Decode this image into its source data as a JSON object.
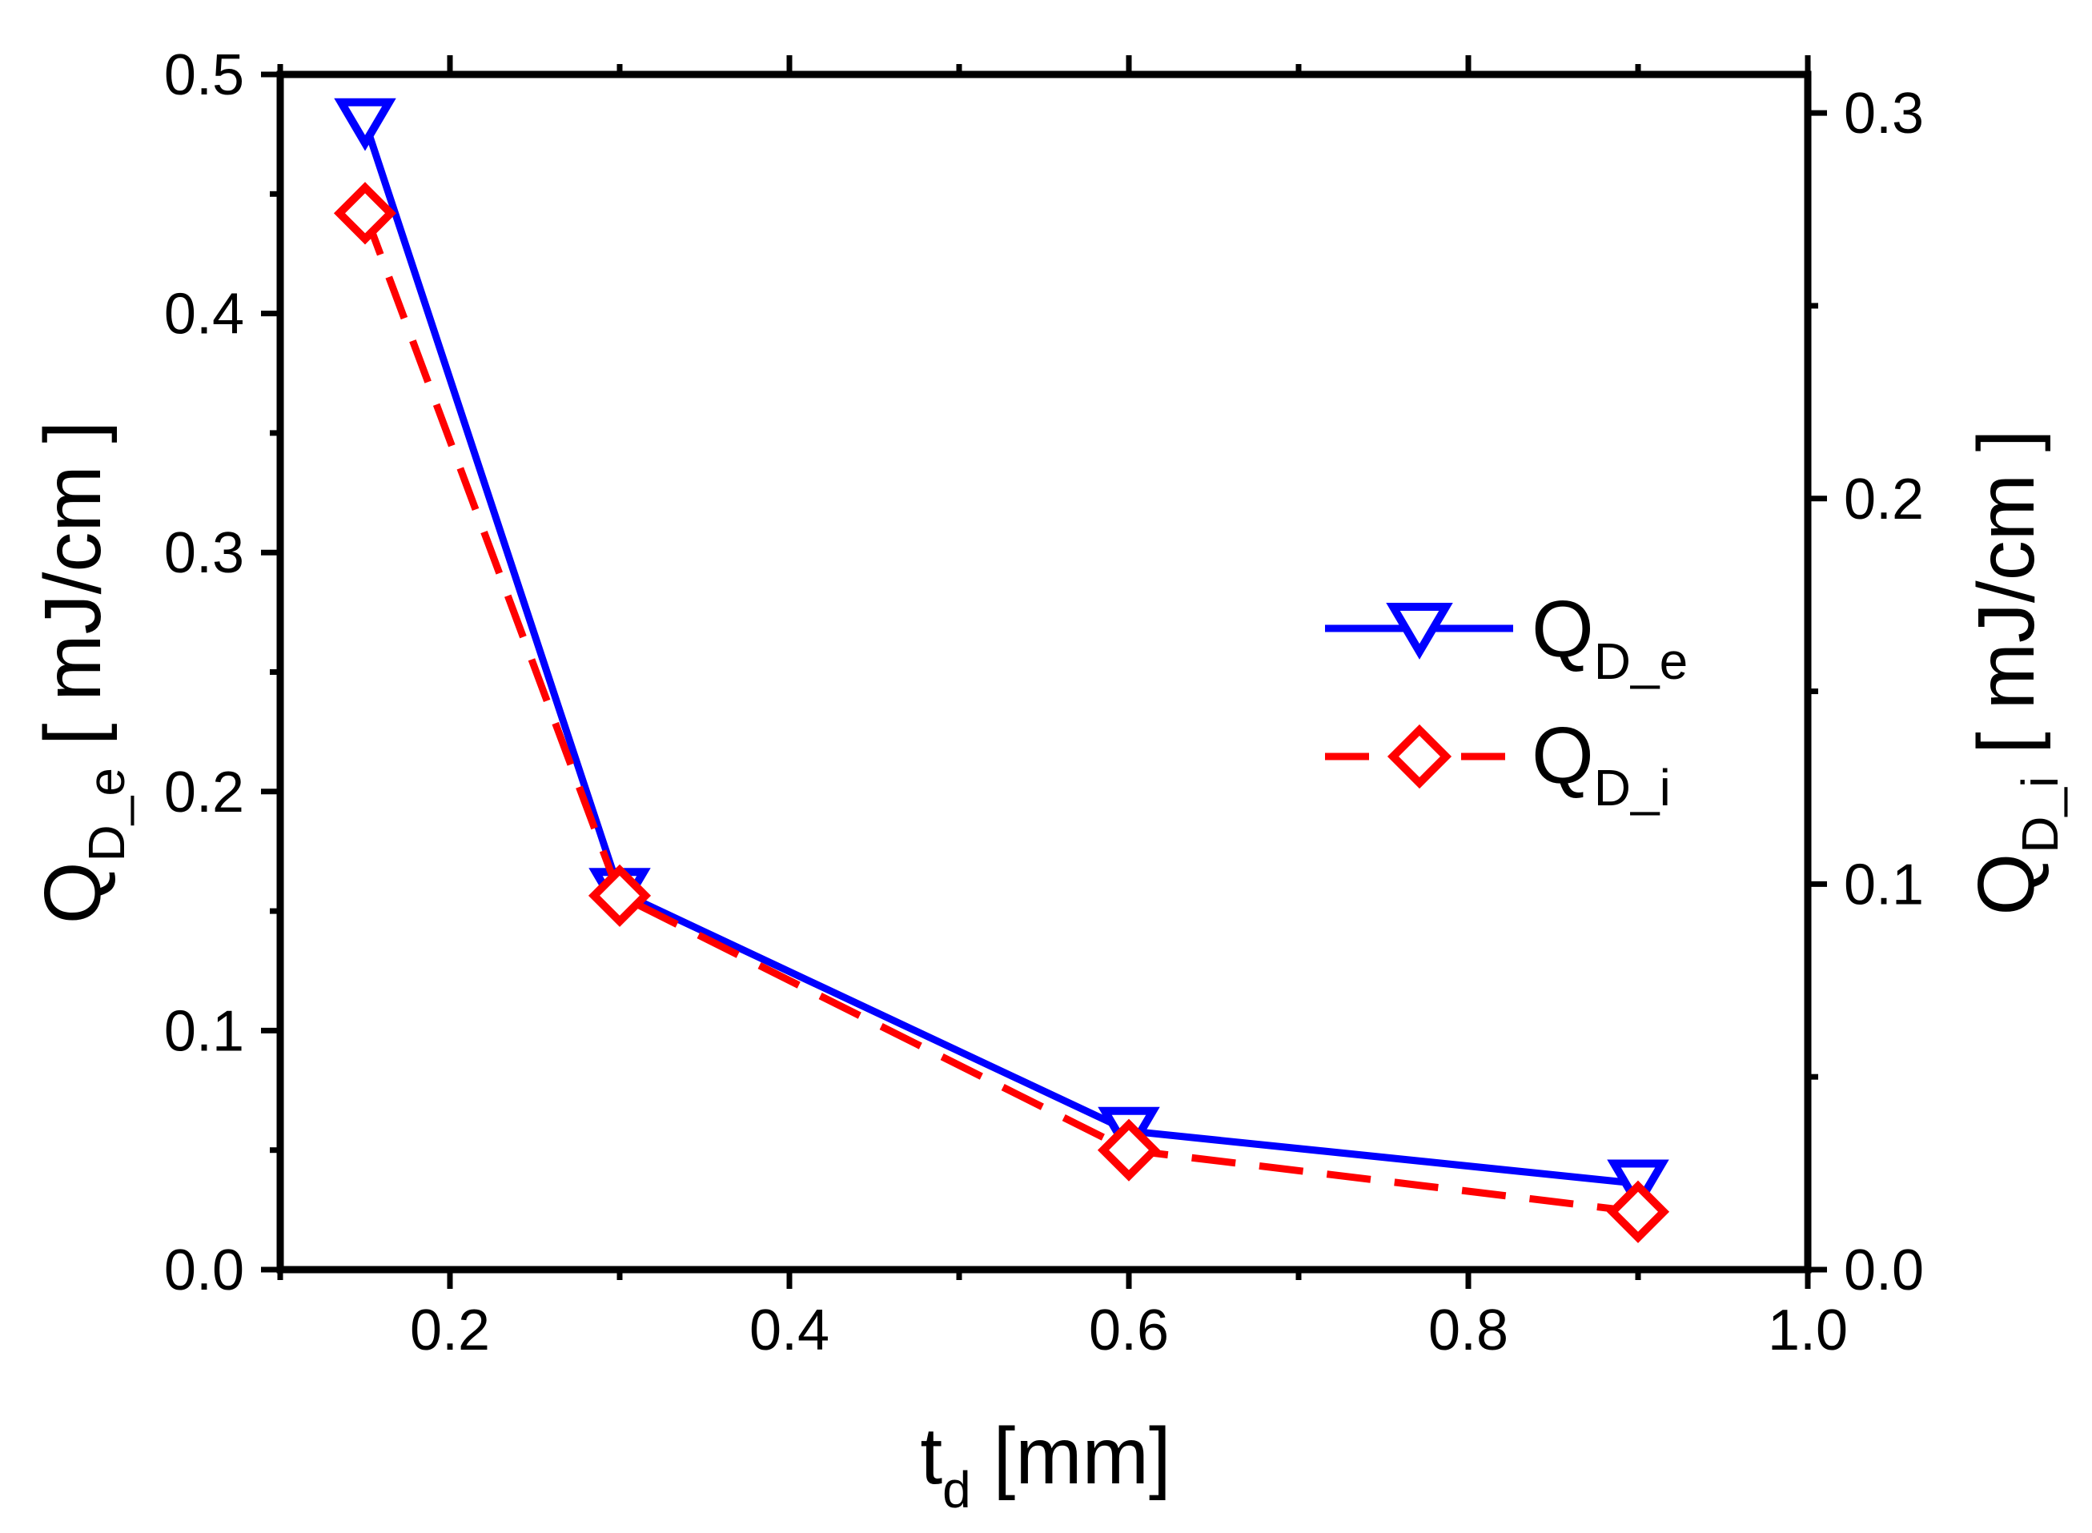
{
  "chart_data": {
    "type": "line",
    "x": [
      0.15,
      0.3,
      0.6,
      0.9
    ],
    "xlim": [
      0.1,
      1.0
    ],
    "x_ticks": [
      "0.2",
      "0.4",
      "0.6",
      "0.8",
      "1.0"
    ],
    "x_tick_values": [
      0.2,
      0.4,
      0.6,
      0.8,
      1.0
    ],
    "xlabel": {
      "main": "t",
      "sub": "d",
      "unit": " [mm]"
    },
    "ylim_left": [
      0.0,
      0.5
    ],
    "y_ticks_left": [
      "0.0",
      "0.1",
      "0.2",
      "0.3",
      "0.4",
      "0.5"
    ],
    "y_tick_values_left": [
      0.0,
      0.1,
      0.2,
      0.3,
      0.4,
      0.5
    ],
    "ylabel_left": {
      "main": "Q",
      "sub": "D_e",
      "unit": " [ mJ/cm ]"
    },
    "ylim_right": [
      0.0,
      0.31
    ],
    "y_ticks_right": [
      "0.0",
      "0.1",
      "0.2",
      "0.3"
    ],
    "y_tick_values_right": [
      0.0,
      0.1,
      0.2,
      0.3
    ],
    "ylabel_right": {
      "main": "Q",
      "sub": "D_i",
      "unit": " [ mJ/cm ]"
    },
    "series": [
      {
        "name": "Q_D_e",
        "legend_main": "Q",
        "legend_sub": "D_e",
        "axis": "left",
        "values": [
          0.48,
          0.158,
          0.058,
          0.036
        ],
        "color": "#0000ff",
        "line": "solid",
        "marker": "triangle-down"
      },
      {
        "name": "Q_D_i",
        "legend_main": "Q",
        "legend_sub": "D_i",
        "axis": "right",
        "values": [
          0.274,
          0.097,
          0.031,
          0.015
        ],
        "color": "#ff0000",
        "line": "dashed",
        "marker": "diamond"
      }
    ],
    "legend_position": "center-right"
  }
}
